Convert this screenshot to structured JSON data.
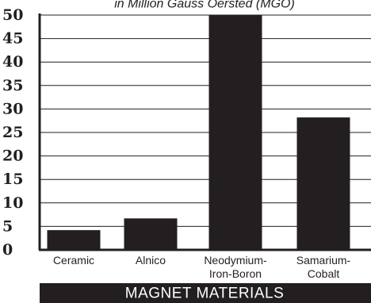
{
  "chart_data": {
    "type": "bar",
    "title": "",
    "subtitle": "in Million Gauss Oersted (MGO)",
    "categories": [
      [
        "Ceramic"
      ],
      [
        "Alnico"
      ],
      [
        "Neodymium-",
        "Iron-Boron"
      ],
      [
        "Samarium-",
        "Cobalt"
      ]
    ],
    "values": [
      4.2,
      6.7,
      50,
      28.2
    ],
    "xlabel": "MAGNET MATERIALS",
    "ylabel": "",
    "ylim": [
      0,
      50
    ],
    "yticks": [
      0,
      5,
      10,
      15,
      20,
      25,
      30,
      35,
      40,
      45,
      50
    ],
    "grid": true,
    "legend": "none"
  },
  "colors": {
    "bar": "#231f20",
    "grid": "#231f20",
    "axis": "#231f20",
    "footer_bg": "#231f20",
    "footer_text": "#ffffff"
  }
}
